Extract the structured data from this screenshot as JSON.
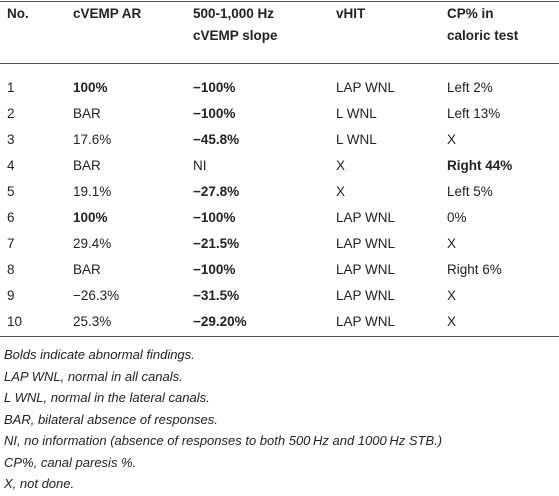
{
  "table": {
    "header": [
      "No.",
      "cVEMP AR",
      [
        "500-1,000 Hz",
        "cVEMP slope"
      ],
      "vHIT",
      [
        "CP% in",
        "caloric test"
      ]
    ],
    "rows": [
      [
        "1",
        {
          "text": "100%",
          "bold": true
        },
        {
          "text": "−100%",
          "bold": true
        },
        "LAP WNL",
        "Left 2%"
      ],
      [
        "2",
        "BAR",
        {
          "text": "−100%",
          "bold": true
        },
        "L WNL",
        "Left 13%"
      ],
      [
        "3",
        "17.6%",
        {
          "text": "−45.8%",
          "bold": true
        },
        "L WNL",
        "X"
      ],
      [
        "4",
        "BAR",
        "NI",
        "X",
        {
          "text": "Right 44%",
          "bold": true
        }
      ],
      [
        "5",
        "19.1%",
        {
          "text": "−27.8%",
          "bold": true
        },
        "X",
        "Left 5%"
      ],
      [
        "6",
        {
          "text": "100%",
          "bold": true
        },
        {
          "text": "−100%",
          "bold": true
        },
        "LAP WNL",
        "0%"
      ],
      [
        "7",
        "29.4%",
        {
          "text": "−21.5%",
          "bold": true
        },
        "LAP WNL",
        "X"
      ],
      [
        "8",
        "BAR",
        {
          "text": "−100%",
          "bold": true
        },
        "LAP WNL",
        "Right 6%"
      ],
      [
        "9",
        "−26.3%",
        {
          "text": "−31.5%",
          "bold": true
        },
        "LAP WNL",
        "X"
      ],
      [
        "10",
        "25.3%",
        {
          "text": "−29.20%",
          "bold": true
        },
        "LAP WNL",
        "X"
      ]
    ]
  },
  "footnotes": [
    "Bolds indicate abnormal findings.",
    "LAP WNL, normal in all canals.",
    "L WNL, normal in the lateral canals.",
    "BAR, bilateral absence of responses.",
    "NI, no information (absence of responses to both 500 Hz and 1000 Hz STB.)",
    "CP%, canal paresis %.",
    "X, not done."
  ]
}
